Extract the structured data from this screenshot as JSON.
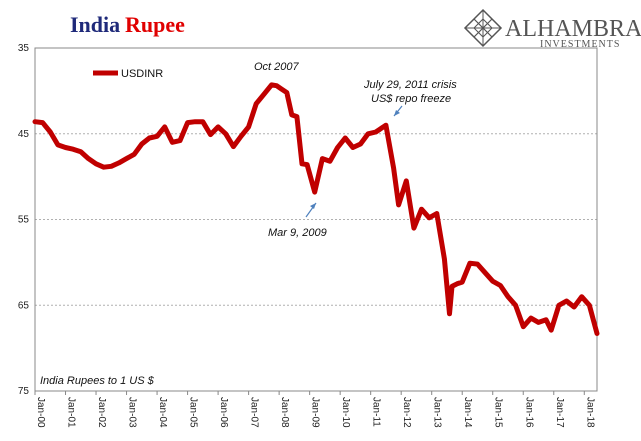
{
  "colors": {
    "series": "#c00000",
    "title_part1": "#1f2a7a",
    "title_part2": "#e00000",
    "brand": "#555555",
    "grid": "#b0b0b0",
    "arrow": "#4f81bd"
  },
  "brand": {
    "name": "ALHAMBRA",
    "tagline": "INVESTMENTS",
    "logo_icon": "diamond-lattice-icon"
  },
  "chart_data": {
    "type": "line",
    "title_part1": "India",
    "title_part2": "Rupee",
    "ylabel": "India Rupees to 1 US $",
    "y_inverted": true,
    "ylim": [
      35,
      75
    ],
    "yticks": [
      35,
      45,
      55,
      65,
      75
    ],
    "xlim": [
      "2000-01",
      "2018-06"
    ],
    "xticks": [
      "Jan-00",
      "Jan-01",
      "Jan-02",
      "Jan-03",
      "Jan-04",
      "Jan-05",
      "Jan-06",
      "Jan-07",
      "Jan-08",
      "Jan-09",
      "Jan-10",
      "Jan-11",
      "Jan-12",
      "Jan-13",
      "Jan-14",
      "Jan-15",
      "Jan-16",
      "Jan-17",
      "Jan-18"
    ],
    "grid": true,
    "legend": {
      "position": "top-left",
      "entries": [
        "USDINR"
      ]
    },
    "series": [
      {
        "name": "USDINR",
        "points": [
          [
            "2000-01",
            43.6
          ],
          [
            "2000-04",
            43.7
          ],
          [
            "2000-07",
            44.8
          ],
          [
            "2000-10",
            46.3
          ],
          [
            "2001-01",
            46.6
          ],
          [
            "2001-04",
            46.8
          ],
          [
            "2001-07",
            47.1
          ],
          [
            "2001-10",
            47.9
          ],
          [
            "2002-01",
            48.5
          ],
          [
            "2002-04",
            48.9
          ],
          [
            "2002-07",
            48.8
          ],
          [
            "2002-10",
            48.4
          ],
          [
            "2003-01",
            47.9
          ],
          [
            "2003-04",
            47.4
          ],
          [
            "2003-07",
            46.2
          ],
          [
            "2003-10",
            45.5
          ],
          [
            "2004-01",
            45.3
          ],
          [
            "2004-04",
            44.2
          ],
          [
            "2004-07",
            46.0
          ],
          [
            "2004-10",
            45.8
          ],
          [
            "2005-01",
            43.7
          ],
          [
            "2005-04",
            43.6
          ],
          [
            "2005-07",
            43.6
          ],
          [
            "2005-10",
            45.1
          ],
          [
            "2006-01",
            44.2
          ],
          [
            "2006-04",
            45.0
          ],
          [
            "2006-07",
            46.5
          ],
          [
            "2006-10",
            45.3
          ],
          [
            "2007-01",
            44.2
          ],
          [
            "2007-04",
            41.5
          ],
          [
            "2007-07",
            40.4
          ],
          [
            "2007-10",
            39.3
          ],
          [
            "2007-12",
            39.4
          ],
          [
            "2008-02",
            39.8
          ],
          [
            "2008-04",
            40.2
          ],
          [
            "2008-06",
            42.8
          ],
          [
            "2008-08",
            43.0
          ],
          [
            "2008-10",
            48.5
          ],
          [
            "2008-12",
            48.6
          ],
          [
            "2009-03",
            51.8
          ],
          [
            "2009-06",
            47.9
          ],
          [
            "2009-09",
            48.2
          ],
          [
            "2009-12",
            46.6
          ],
          [
            "2010-03",
            45.5
          ],
          [
            "2010-06",
            46.6
          ],
          [
            "2010-09",
            46.2
          ],
          [
            "2010-12",
            45.0
          ],
          [
            "2011-03",
            44.8
          ],
          [
            "2011-07",
            44.0
          ],
          [
            "2011-10",
            49.0
          ],
          [
            "2011-12",
            53.3
          ],
          [
            "2012-03",
            50.5
          ],
          [
            "2012-06",
            56.0
          ],
          [
            "2012-09",
            53.8
          ],
          [
            "2012-12",
            54.8
          ],
          [
            "2013-03",
            54.3
          ],
          [
            "2013-06",
            59.6
          ],
          [
            "2013-08",
            66.0
          ],
          [
            "2013-09",
            62.8
          ],
          [
            "2013-11",
            62.5
          ],
          [
            "2014-01",
            62.3
          ],
          [
            "2014-04",
            60.1
          ],
          [
            "2014-07",
            60.2
          ],
          [
            "2014-10",
            61.2
          ],
          [
            "2015-01",
            62.2
          ],
          [
            "2015-04",
            62.7
          ],
          [
            "2015-07",
            64.0
          ],
          [
            "2015-10",
            65.0
          ],
          [
            "2016-01",
            67.5
          ],
          [
            "2016-04",
            66.5
          ],
          [
            "2016-07",
            67.0
          ],
          [
            "2016-10",
            66.7
          ],
          [
            "2016-12",
            67.9
          ],
          [
            "2017-03",
            65.0
          ],
          [
            "2017-06",
            64.5
          ],
          [
            "2017-09",
            65.2
          ],
          [
            "2017-12",
            64.0
          ],
          [
            "2018-03",
            65.0
          ],
          [
            "2018-06",
            68.3
          ]
        ]
      }
    ],
    "annotations": [
      {
        "text": "Oct 2007",
        "x": "2007-10",
        "y": 39.3
      },
      {
        "text": "Mar 9, 2009",
        "x": "2009-03",
        "y": 51.8
      },
      {
        "text": "July 29, 2011 crisis",
        "x": "2011-07",
        "y": 44.0
      },
      {
        "text": "US$ repo freeze",
        "x": "2011-07",
        "y": 44.0
      }
    ]
  }
}
